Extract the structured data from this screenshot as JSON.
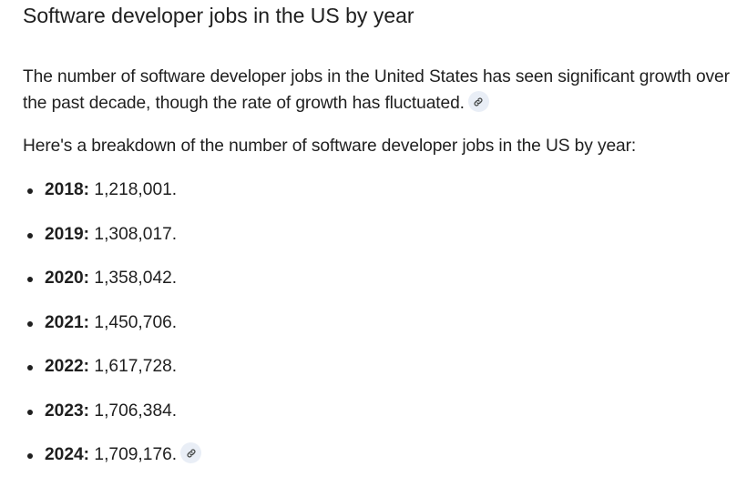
{
  "heading": "Software developer jobs in the US by year",
  "intro": "The number of software developer jobs in the United States has seen significant growth over the past decade, though the rate of growth has fluctuated.",
  "lead": "Here's a breakdown of the number of software developer jobs in the US by year:",
  "source_icon": "link-icon",
  "items": [
    {
      "year": "2018:",
      "value": "1,218,001."
    },
    {
      "year": "2019:",
      "value": "1,308,017."
    },
    {
      "year": "2020:",
      "value": "1,358,042."
    },
    {
      "year": "2021:",
      "value": "1,450,706."
    },
    {
      "year": "2022:",
      "value": "1,617,728."
    },
    {
      "year": "2023:",
      "value": "1,706,384."
    },
    {
      "year": "2024:",
      "value": "1,709,176."
    }
  ]
}
